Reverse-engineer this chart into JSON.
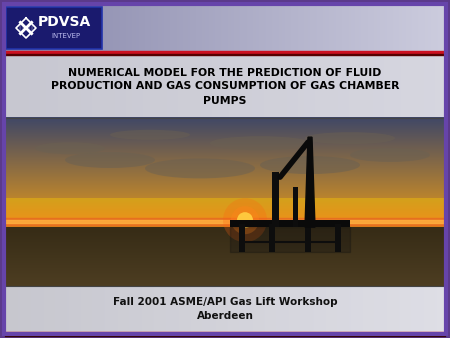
{
  "title_line1": "NUMERICAL MODEL FOR THE PREDICTION OF FLUID",
  "title_line2": "PRODUCTION AND GAS CONSUMPTION OF GAS CHAMBER",
  "title_line3": "PUMPS",
  "footer_line1": "Fall 2001 ASME/API Gas Lift Workshop",
  "footer_line2": "Aberdeen",
  "bg_color": "#5B3A8A",
  "title_text_color": "#000000",
  "footer_text_color": "#111111",
  "logo_box_bg": "#1A1A6E",
  "red_line_color": "#CC1020",
  "slide_border_color": "#6644AA"
}
